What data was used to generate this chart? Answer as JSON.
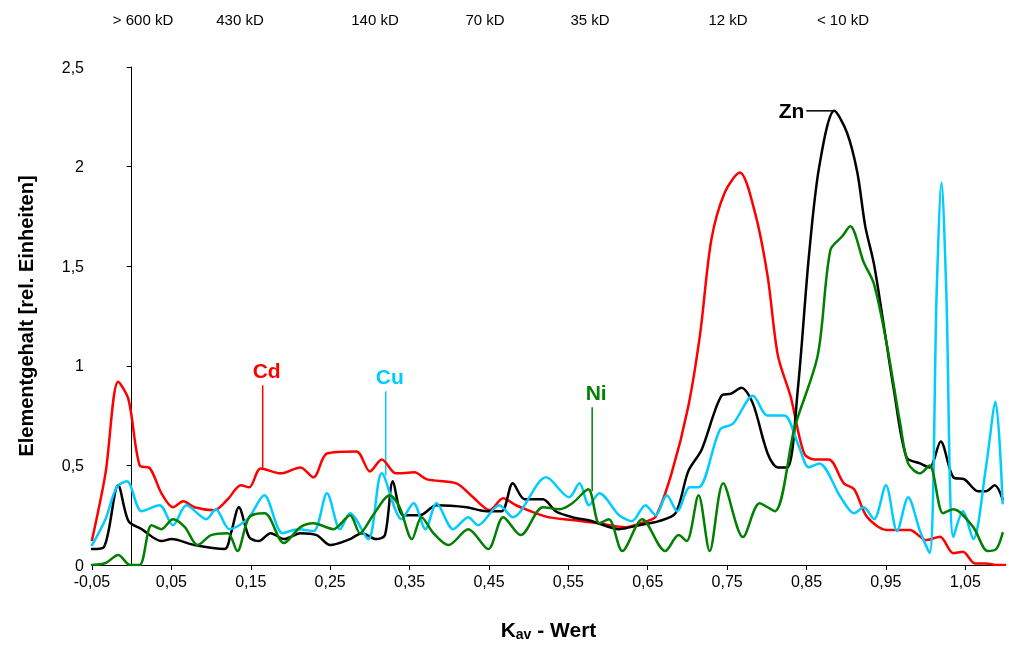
{
  "chart_data": {
    "type": "line",
    "xlabel": "K$_{av}$ - Wert",
    "ylabel": "Elementgehalt [rel. Einheiten]",
    "xlim": [
      -0.05,
      1.1
    ],
    "xticks": [
      {
        "value": -0.05,
        "label": "-0,05"
      },
      {
        "value": 0.05,
        "label": "0,05"
      },
      {
        "value": 0.15,
        "label": "0,15"
      },
      {
        "value": 0.25,
        "label": "0,25"
      },
      {
        "value": 0.35,
        "label": "0,35"
      },
      {
        "value": 0.45,
        "label": "0,45"
      },
      {
        "value": 0.55,
        "label": "0,55"
      },
      {
        "value": 0.65,
        "label": "0,65"
      },
      {
        "value": 0.75,
        "label": "0,75"
      },
      {
        "value": 0.85,
        "label": "0,85"
      },
      {
        "value": 0.95,
        "label": "0,95"
      },
      {
        "value": 1.05,
        "label": "1,05"
      }
    ],
    "ylim": [
      0,
      2.5
    ],
    "yticks": [
      0,
      {
        "value": 0.5,
        "label": "0,5"
      },
      1,
      {
        "value": 1.5,
        "label": "1,5"
      },
      2,
      {
        "value": 2.5,
        "label": "2,5"
      }
    ],
    "grid": false,
    "marker": "none",
    "line_style": "solid",
    "annotations": [
      "> 600 kD",
      "430 kD",
      "140 kD",
      "70 kD",
      "35 kD",
      "12 kD",
      "< 10 kD",
      {
        "text": "Cd",
        "x": 0.165,
        "y": 0.48
      },
      {
        "text": "Cu",
        "x": 0.32,
        "y": 0.45
      },
      {
        "text": "Ni",
        "x": 0.58,
        "y": 0.37
      },
      {
        "text": "Zn",
        "x": 0.885,
        "y": 2.28
      }
    ],
    "series": [
      {
        "color": "#ff0000",
        "x": [
          -0.05,
          -0.033,
          -0.017,
          -0.004,
          0.01,
          0.023,
          0.0375,
          0.052,
          0.065,
          0.079,
          0.104,
          0.121,
          0.1375,
          0.148,
          0.1625,
          0.1875,
          0.2125,
          0.229,
          0.246,
          0.283,
          0.3,
          0.315,
          0.333,
          0.356,
          0.372,
          0.409,
          0.43,
          0.451,
          0.468,
          0.484,
          0.522,
          0.555,
          0.589,
          0.622,
          0.647,
          0.66,
          0.68,
          0.701,
          0.716,
          0.73,
          0.747,
          0.766,
          0.785,
          0.801,
          0.814,
          0.83,
          0.847,
          0.86,
          0.878,
          0.897,
          0.91,
          0.926,
          0.951,
          0.98,
          1.001,
          1.018,
          1.035,
          1.047,
          1.062,
          1.076,
          1.089,
          1.1
        ],
        "values": [
          0.125,
          0.46,
          0.92,
          0.83,
          0.5,
          0.485,
          0.36,
          0.29,
          0.32,
          0.29,
          0.275,
          0.33,
          0.4,
          0.39,
          0.485,
          0.46,
          0.49,
          0.44,
          0.56,
          0.57,
          0.47,
          0.53,
          0.46,
          0.465,
          0.43,
          0.41,
          0.34,
          0.276,
          0.335,
          0.3,
          0.243,
          0.226,
          0.209,
          0.19,
          0.218,
          0.243,
          0.46,
          0.795,
          1.16,
          1.63,
          1.87,
          1.97,
          1.77,
          1.45,
          1.05,
          0.845,
          0.56,
          0.53,
          0.53,
          0.41,
          0.38,
          0.243,
          0.176,
          0.176,
          0.125,
          0.142,
          0.059,
          0.067,
          0.008,
          0.008,
          0,
          0
        ]
      },
      {
        "color": "#000000",
        "x": [
          -0.05,
          -0.035,
          -0.017,
          -0.004,
          0.0125,
          0.0375,
          0.05,
          0.079,
          0.117,
          0.125,
          0.135,
          0.148,
          0.16,
          0.175,
          0.192,
          0.2125,
          0.233,
          0.25,
          0.275,
          0.29,
          0.308,
          0.319,
          0.329,
          0.342,
          0.363,
          0.384,
          0.422,
          0.447,
          0.466,
          0.48,
          0.495,
          0.518,
          0.534,
          0.555,
          0.58,
          0.614,
          0.639,
          0.664,
          0.685,
          0.701,
          0.718,
          0.743,
          0.755,
          0.768,
          0.7825,
          0.801,
          0.814,
          0.826,
          0.839,
          0.853,
          0.866,
          0.885,
          0.901,
          0.914,
          0.924,
          0.935,
          0.947,
          0.96,
          0.976,
          0.993,
          1.005,
          1.019,
          1.035,
          1.049,
          1.066,
          1.076,
          1.087,
          1.097
        ],
        "values": [
          0.08,
          0.09,
          0.4,
          0.22,
          0.18,
          0.12,
          0.13,
          0.1,
          0.08,
          0.16,
          0.29,
          0.14,
          0.12,
          0.16,
          0.13,
          0.16,
          0.15,
          0.1,
          0.13,
          0.16,
          0.13,
          0.15,
          0.42,
          0.25,
          0.25,
          0.3,
          0.29,
          0.27,
          0.27,
          0.41,
          0.33,
          0.33,
          0.27,
          0.24,
          0.22,
          0.18,
          0.2,
          0.22,
          0.26,
          0.47,
          0.58,
          0.85,
          0.86,
          0.89,
          0.81,
          0.56,
          0.49,
          0.49,
          0.88,
          1.55,
          2.0,
          2.28,
          2.17,
          1.97,
          1.7,
          1.51,
          1.21,
          0.88,
          0.54,
          0.51,
          0.49,
          0.62,
          0.44,
          0.43,
          0.37,
          0.37,
          0.4,
          0.33
        ]
      },
      {
        "color": "#00ccff",
        "x": [
          -0.05,
          -0.033,
          -0.019,
          -0.006,
          0.0125,
          0.035,
          0.052,
          0.069,
          0.094,
          0.106,
          0.123,
          0.146,
          0.167,
          0.19,
          0.21,
          0.229,
          0.246,
          0.2625,
          0.275,
          0.298,
          0.315,
          0.34,
          0.355,
          0.37,
          0.384,
          0.405,
          0.424,
          0.436,
          0.463,
          0.48,
          0.522,
          0.551,
          0.564,
          0.576,
          0.589,
          0.614,
          0.63,
          0.647,
          0.66,
          0.674,
          0.687,
          0.703,
          0.714,
          0.741,
          0.7575,
          0.7825,
          0.801,
          0.822,
          0.839,
          0.853,
          0.866,
          0.893,
          0.91,
          0.922,
          0.935,
          0.95,
          0.964,
          0.978,
          0.993,
          1.005,
          1.014,
          1.02,
          1.026,
          1.035,
          1.047,
          1.06,
          1.076,
          1.088,
          1.097
        ],
        "values": [
          0.1,
          0.23,
          0.39,
          0.42,
          0.27,
          0.3,
          0.2,
          0.3,
          0.23,
          0.28,
          0.18,
          0.23,
          0.35,
          0.16,
          0.18,
          0.17,
          0.36,
          0.18,
          0.26,
          0.13,
          0.46,
          0.23,
          0.31,
          0.18,
          0.31,
          0.18,
          0.24,
          0.2,
          0.3,
          0.24,
          0.44,
          0.34,
          0.41,
          0.3,
          0.36,
          0.25,
          0.22,
          0.3,
          0.25,
          0.35,
          0.27,
          0.39,
          0.39,
          0.68,
          0.71,
          0.85,
          0.75,
          0.75,
          0.61,
          0.49,
          0.51,
          0.34,
          0.26,
          0.29,
          0.23,
          0.4,
          0.17,
          0.34,
          0.17,
          0.06,
          1.38,
          1.92,
          1.38,
          0.14,
          0.27,
          0.13,
          0.49,
          0.82,
          0.31
        ]
      },
      {
        "color": "#008000",
        "x": [
          -0.05,
          -0.033,
          -0.017,
          -0.002,
          0.01,
          0.025,
          0.0375,
          0.052,
          0.067,
          0.083,
          0.1,
          0.121,
          0.133,
          0.148,
          0.1675,
          0.1917,
          0.2125,
          0.229,
          0.254,
          0.275,
          0.2875,
          0.304,
          0.325,
          0.3375,
          0.353,
          0.365,
          0.38,
          0.399,
          0.424,
          0.449,
          0.468,
          0.49,
          0.518,
          0.539,
          0.555,
          0.575,
          0.589,
          0.601,
          0.618,
          0.643,
          0.672,
          0.689,
          0.699,
          0.714,
          0.728,
          0.745,
          0.77,
          0.791,
          0.81,
          0.835,
          0.864,
          0.88,
          0.895,
          0.905,
          0.922,
          0.935,
          0.951,
          0.968,
          0.978,
          0.993,
          1.005,
          1.022,
          1.035,
          1.06,
          1.078,
          1.089,
          1.097
        ],
        "values": [
          0,
          0.01,
          0.05,
          0,
          0,
          0.2,
          0.18,
          0.23,
          0.19,
          0.1,
          0.15,
          0.16,
          0.07,
          0.24,
          0.26,
          0.11,
          0.19,
          0.21,
          0.18,
          0.25,
          0.16,
          0.25,
          0.35,
          0.29,
          0.13,
          0.24,
          0.16,
          0.1,
          0.18,
          0.08,
          0.24,
          0.15,
          0.29,
          0.28,
          0.31,
          0.38,
          0.21,
          0.23,
          0.07,
          0.23,
          0.07,
          0.15,
          0.12,
          0.35,
          0.07,
          0.41,
          0.14,
          0.31,
          0.27,
          0.69,
          1.05,
          1.58,
          1.65,
          1.7,
          1.52,
          1.41,
          1.11,
          0.71,
          0.51,
          0.46,
          0.5,
          0.26,
          0.28,
          0.19,
          0.07,
          0.08,
          0.16
        ]
      }
    ]
  }
}
